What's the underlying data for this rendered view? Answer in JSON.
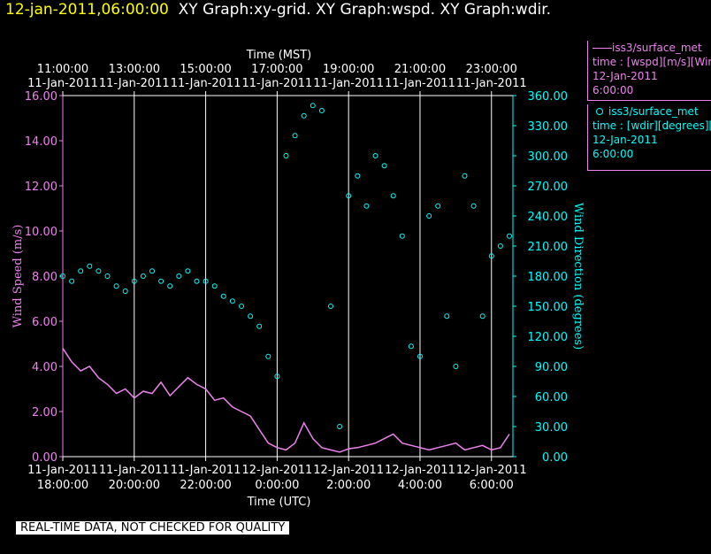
{
  "header": {
    "datetime": "12-jan-2011,06:00:00",
    "graphs": "XY Graph:xy-grid.  XY Graph:wspd.  XY Graph:wdir."
  },
  "legend": {
    "series1": {
      "title": "iss3/surface_met",
      "line1": "time : [wspd][m/s][Wind Speed]",
      "line2": "12-Jan-2011",
      "line3": "6:00:00",
      "color": "#ee82ee"
    },
    "series2": {
      "title": "iss3/surface_met",
      "line1": "time : [wdir][degrees][Wind Direction]",
      "line2": "12-Jan-2011",
      "line3": "6:00:00",
      "color": "#00ffff"
    }
  },
  "notice": "REAL-TIME DATA, NOT CHECKED FOR QUALITY",
  "chart_data": {
    "type": "line",
    "top_axis": {
      "title": "Time (MST)",
      "ticks": [
        {
          "hours": 0,
          "l1": "11:00:00",
          "l2": "11-Jan-2011"
        },
        {
          "hours": 2,
          "l1": "13:00:00",
          "l2": "11-Jan-2011"
        },
        {
          "hours": 4,
          "l1": "15:00:00",
          "l2": "11-Jan-2011"
        },
        {
          "hours": 6,
          "l1": "17:00:00",
          "l2": "11-Jan-2011"
        },
        {
          "hours": 8,
          "l1": "19:00:00",
          "l2": "11-Jan-2011"
        },
        {
          "hours": 10,
          "l1": "21:00:00",
          "l2": "11-Jan-2011"
        },
        {
          "hours": 12,
          "l1": "23:00:00",
          "l2": "11-Jan-2011"
        }
      ]
    },
    "bottom_axis": {
      "title": "Time (UTC)",
      "ticks": [
        {
          "hours": 0,
          "l1": "11-Jan-2011",
          "l2": "18:00:00"
        },
        {
          "hours": 2,
          "l1": "11-Jan-2011",
          "l2": "20:00:00"
        },
        {
          "hours": 4,
          "l1": "11-Jan-2011",
          "l2": "22:00:00"
        },
        {
          "hours": 6,
          "l1": "12-Jan-2011",
          "l2": "0:00:00"
        },
        {
          "hours": 8,
          "l1": "12-Jan-2011",
          "l2": "2:00:00"
        },
        {
          "hours": 10,
          "l1": "12-Jan-2011",
          "l2": "4:00:00"
        },
        {
          "hours": 12,
          "l1": "12-Jan-2011",
          "l2": "6:00:00"
        }
      ]
    },
    "x_range_hours": [
      0,
      12.6
    ],
    "left_axis": {
      "label": "Wind Speed (m/s)",
      "range": [
        0,
        16
      ],
      "ticks": [
        "0.00",
        "2.00",
        "4.00",
        "6.00",
        "8.00",
        "10.00",
        "12.00",
        "14.00",
        "16.00"
      ],
      "color": "#ee82ee"
    },
    "right_axis": {
      "label": "Wind Direction (degrees)",
      "range": [
        0,
        360
      ],
      "ticks": [
        "0.00",
        "30.00",
        "60.00",
        "90.00",
        "120.00",
        "150.00",
        "180.00",
        "210.00",
        "240.00",
        "270.00",
        "300.00",
        "330.00",
        "360.00"
      ],
      "color": "#00ffff"
    },
    "grid": true,
    "series": [
      {
        "name": "iss3/surface_met time : [wspd][m/s]",
        "axis": "left",
        "style": "line",
        "color": "#ee82ee",
        "x": [
          0,
          0.25,
          0.5,
          0.75,
          1,
          1.25,
          1.5,
          1.75,
          2,
          2.25,
          2.5,
          2.75,
          3,
          3.25,
          3.5,
          3.75,
          4,
          4.25,
          4.5,
          4.75,
          5,
          5.25,
          5.5,
          5.75,
          6,
          6.25,
          6.5,
          6.75,
          7,
          7.25,
          7.5,
          7.75,
          8,
          8.25,
          8.5,
          8.75,
          9,
          9.25,
          9.5,
          9.75,
          10,
          10.25,
          10.5,
          10.75,
          11,
          11.25,
          11.5,
          11.75,
          12,
          12.25,
          12.5
        ],
        "y": [
          4.8,
          4.2,
          3.8,
          4.0,
          3.5,
          3.2,
          2.8,
          3.0,
          2.6,
          2.9,
          2.8,
          3.3,
          2.7,
          3.1,
          3.5,
          3.2,
          3.0,
          2.5,
          2.6,
          2.2,
          2.0,
          1.8,
          1.2,
          0.6,
          0.4,
          0.3,
          0.6,
          1.5,
          0.8,
          0.4,
          0.3,
          0.2,
          0.35,
          0.4,
          0.5,
          0.6,
          0.8,
          1.0,
          0.6,
          0.5,
          0.4,
          0.3,
          0.4,
          0.5,
          0.6,
          0.3,
          0.4,
          0.5,
          0.3,
          0.4,
          1.0
        ]
      },
      {
        "name": "iss3/surface_met time : [wdir][degrees]",
        "axis": "right",
        "style": "scatter",
        "color": "#00ffff",
        "x": [
          0,
          0.25,
          0.5,
          0.75,
          1,
          1.25,
          1.5,
          1.75,
          2,
          2.25,
          2.5,
          2.75,
          3,
          3.25,
          3.5,
          3.75,
          4,
          4.25,
          4.5,
          4.75,
          5,
          5.25,
          5.5,
          5.75,
          6,
          6.25,
          6.5,
          6.75,
          7,
          7.25,
          7.5,
          7.75,
          8,
          8.25,
          8.5,
          8.75,
          9,
          9.25,
          9.5,
          9.75,
          10,
          10.25,
          10.5,
          10.75,
          11,
          11.25,
          11.5,
          11.75,
          12,
          12.25,
          12.5
        ],
        "y": [
          180,
          175,
          185,
          190,
          185,
          180,
          170,
          165,
          175,
          180,
          185,
          175,
          170,
          180,
          185,
          175,
          175,
          170,
          160,
          155,
          150,
          140,
          130,
          100,
          80,
          300,
          320,
          340,
          350,
          345,
          150,
          30,
          260,
          280,
          250,
          300,
          290,
          260,
          220,
          110,
          100,
          240,
          250,
          140,
          90,
          280,
          250,
          140,
          200,
          210,
          220
        ]
      }
    ]
  }
}
